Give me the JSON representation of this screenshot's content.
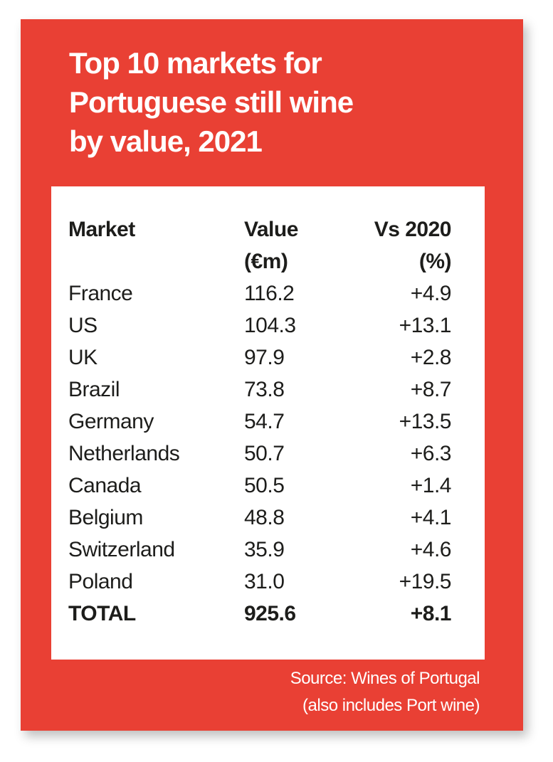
{
  "title": {
    "lines": [
      "Top 10 markets for",
      "Portuguese still wine",
      "by value, 2021"
    ]
  },
  "colors": {
    "panel": "#e94034",
    "card": "#ffffff",
    "text": "#1d1d1b"
  },
  "table": {
    "headers": [
      {
        "line1": "Market",
        "line2": ""
      },
      {
        "line1": "Value",
        "line2": "(€m)"
      },
      {
        "line1": "Vs 2020",
        "line2": "(%)"
      }
    ],
    "rows": [
      {
        "market": "France",
        "value": "116.2",
        "change": "+4.9"
      },
      {
        "market": "US",
        "value": "104.3",
        "change": "+13.1"
      },
      {
        "market": "UK",
        "value": "97.9",
        "change": "+2.8"
      },
      {
        "market": "Brazil",
        "value": "73.8",
        "change": "+8.7"
      },
      {
        "market": "Germany",
        "value": "54.7",
        "change": "+13.5"
      },
      {
        "market": "Netherlands",
        "value": "50.7",
        "change": "+6.3"
      },
      {
        "market": "Canada",
        "value": "50.5",
        "change": "+1.4"
      },
      {
        "market": "Belgium",
        "value": "48.8",
        "change": "+4.1"
      },
      {
        "market": "Switzerland",
        "value": "35.9",
        "change": "+4.6"
      },
      {
        "market": "Poland",
        "value": "31.0",
        "change": "+19.5"
      }
    ],
    "total": {
      "market": "TOTAL",
      "value": "925.6",
      "change": "+8.1"
    }
  },
  "source": {
    "line1": "Source: Wines of Portugal",
    "line2": "(also includes Port wine)"
  },
  "chart_data": {
    "type": "table",
    "title": "Top 10 markets for Portuguese still wine by value, 2021",
    "columns": [
      "Market",
      "Value (€m)",
      "Vs 2020 (%)"
    ],
    "categories": [
      "France",
      "US",
      "UK",
      "Brazil",
      "Germany",
      "Netherlands",
      "Canada",
      "Belgium",
      "Switzerland",
      "Poland"
    ],
    "series": [
      {
        "name": "Value (€m)",
        "values": [
          116.2,
          104.3,
          97.9,
          73.8,
          54.7,
          50.7,
          50.5,
          48.8,
          35.9,
          31.0
        ]
      },
      {
        "name": "Vs 2020 (%)",
        "values": [
          4.9,
          13.1,
          2.8,
          8.7,
          13.5,
          6.3,
          1.4,
          4.1,
          4.6,
          19.5
        ]
      }
    ],
    "total": {
      "value": 925.6,
      "change": 8.1
    },
    "source": "Source: Wines of Portugal (also includes Port wine)"
  }
}
